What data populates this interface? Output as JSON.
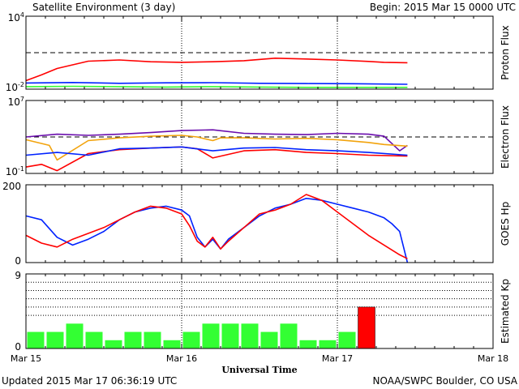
{
  "header": {
    "title": "Satellite Environment (3 day)",
    "begin": "Begin:  2015 Mar 15 0000 UTC"
  },
  "footer": {
    "updated": "Updated 2015 Mar 17 06:36:19 UTC",
    "credit": "NOAA/SWPC Boulder, CO USA"
  },
  "x_axis": {
    "label": "Universal Time",
    "ticks": [
      "Mar 15",
      "Mar 16",
      "Mar 17",
      "Mar 18"
    ]
  },
  "colors": {
    "red": "#ff0000",
    "blue": "#0022ff",
    "green": "#33ff33",
    "purple": "#6a0dad",
    "orange": "#f2a30c",
    "grid": "#000000"
  },
  "chart_data": [
    {
      "type": "line",
      "name": "proton-flux",
      "ylabel": "Proton Flux",
      "yscale": "log",
      "ylim": [
        0.01,
        10000
      ],
      "ytick_labels": [
        {
          "base": "10",
          "exp": "4"
        },
        {
          "base": "10",
          "exp": "-2"
        }
      ],
      "threshold": 10,
      "xlim": [
        0,
        3
      ],
      "series": [
        {
          "color": "red",
          "x": [
            0,
            0.1,
            0.2,
            0.4,
            0.6,
            0.8,
            1.0,
            1.2,
            1.4,
            1.6,
            1.8,
            2.0,
            2.2,
            2.3,
            2.45
          ],
          "y": [
            0.05,
            0.15,
            0.5,
            2.0,
            2.5,
            1.8,
            1.6,
            1.8,
            2.2,
            3.5,
            3.0,
            2.5,
            1.9,
            1.6,
            1.5
          ]
        },
        {
          "color": "blue",
          "x": [
            0,
            0.3,
            0.6,
            0.9,
            1.2,
            1.5,
            1.8,
            2.1,
            2.45
          ],
          "y": [
            0.032,
            0.035,
            0.03,
            0.033,
            0.034,
            0.03,
            0.029,
            0.028,
            0.025
          ]
        },
        {
          "color": "green",
          "x": [
            0,
            0.3,
            0.6,
            0.9,
            1.2,
            1.5,
            1.8,
            2.1,
            2.45
          ],
          "y": [
            0.016,
            0.017,
            0.016,
            0.015,
            0.016,
            0.015,
            0.014,
            0.014,
            0.014
          ]
        }
      ]
    },
    {
      "type": "line",
      "name": "electron-flux",
      "ylabel": "Electron Flux",
      "yscale": "log",
      "ylim": [
        0.1,
        10000000
      ],
      "ytick_labels": [
        {
          "base": "10",
          "exp": "7"
        },
        {
          "base": "10",
          "exp": "-1"
        }
      ],
      "threshold": 1000,
      "xlim": [
        0,
        3
      ],
      "series": [
        {
          "color": "purple",
          "x": [
            0,
            0.2,
            0.4,
            0.6,
            0.8,
            1.0,
            1.2,
            1.4,
            1.6,
            1.8,
            2.0,
            2.2,
            2.3,
            2.4,
            2.45
          ],
          "y": [
            1000,
            2000,
            1500,
            2000,
            3000,
            5000,
            6000,
            2500,
            2000,
            1800,
            2500,
            2000,
            1200,
            30,
            120
          ]
        },
        {
          "color": "orange",
          "x": [
            0,
            0.15,
            0.2,
            0.4,
            0.6,
            0.8,
            1.0,
            1.1,
            1.2,
            1.25,
            1.4,
            1.6,
            1.8,
            2.0,
            2.2,
            2.3,
            2.45
          ],
          "y": [
            500,
            120,
            3,
            400,
            800,
            1200,
            1500,
            1000,
            400,
            800,
            800,
            600,
            700,
            500,
            250,
            150,
            100
          ]
        },
        {
          "color": "red",
          "x": [
            0,
            0.1,
            0.2,
            0.4,
            0.6,
            0.8,
            1.0,
            1.1,
            1.2,
            1.4,
            1.6,
            1.8,
            2.0,
            2.2,
            2.45
          ],
          "y": [
            0.5,
            1,
            0.2,
            15,
            40,
            60,
            80,
            50,
            5,
            30,
            40,
            20,
            15,
            10,
            8
          ]
        },
        {
          "color": "blue",
          "x": [
            0,
            0.2,
            0.4,
            0.6,
            0.8,
            1.0,
            1.2,
            1.4,
            1.6,
            1.8,
            2.0,
            2.2,
            2.45
          ],
          "y": [
            10,
            20,
            10,
            50,
            60,
            80,
            30,
            60,
            70,
            40,
            30,
            20,
            10
          ]
        }
      ]
    },
    {
      "type": "line",
      "name": "goes-hp",
      "ylabel": "GOES Hp",
      "ylim": [
        0,
        200
      ],
      "ytick_labels": [
        "200",
        "0"
      ],
      "xlim": [
        0,
        3
      ],
      "series": [
        {
          "color": "blue",
          "x": [
            0,
            0.1,
            0.2,
            0.3,
            0.4,
            0.5,
            0.6,
            0.7,
            0.8,
            0.9,
            1.0,
            1.05,
            1.1,
            1.15,
            1.2,
            1.25,
            1.3,
            1.4,
            1.5,
            1.6,
            1.7,
            1.8,
            1.9,
            2.0,
            2.1,
            2.2,
            2.3,
            2.35,
            2.4,
            2.45
          ],
          "y": [
            120,
            110,
            65,
            45,
            60,
            80,
            110,
            130,
            140,
            145,
            135,
            120,
            65,
            40,
            60,
            35,
            60,
            90,
            120,
            140,
            150,
            165,
            160,
            150,
            140,
            130,
            115,
            100,
            80,
            0
          ]
        },
        {
          "color": "red",
          "x": [
            0,
            0.1,
            0.2,
            0.3,
            0.4,
            0.5,
            0.6,
            0.7,
            0.8,
            0.9,
            1.0,
            1.05,
            1.1,
            1.15,
            1.2,
            1.25,
            1.3,
            1.4,
            1.5,
            1.6,
            1.7,
            1.8,
            1.9,
            2.0,
            2.1,
            2.2,
            2.3,
            2.4,
            2.45
          ],
          "y": [
            70,
            50,
            40,
            60,
            75,
            90,
            110,
            130,
            145,
            140,
            125,
            95,
            55,
            40,
            65,
            35,
            55,
            90,
            125,
            135,
            150,
            175,
            160,
            130,
            100,
            70,
            45,
            20,
            10
          ]
        }
      ]
    },
    {
      "type": "bar",
      "name": "estimated-kp",
      "ylabel": "Estimated Kp",
      "ylim": [
        0,
        9
      ],
      "ytick_labels": [
        "9",
        "0"
      ],
      "gridlines": [
        4,
        5,
        6,
        7,
        8,
        9
      ],
      "bar_hours": 3,
      "values": [
        2,
        2,
        3,
        2,
        1,
        2,
        2,
        1,
        2,
        3,
        3,
        3,
        2,
        3,
        1,
        1,
        2,
        5
      ],
      "colors": [
        "green",
        "green",
        "green",
        "green",
        "green",
        "green",
        "green",
        "green",
        "green",
        "green",
        "green",
        "green",
        "green",
        "green",
        "green",
        "green",
        "green",
        "red"
      ]
    }
  ]
}
